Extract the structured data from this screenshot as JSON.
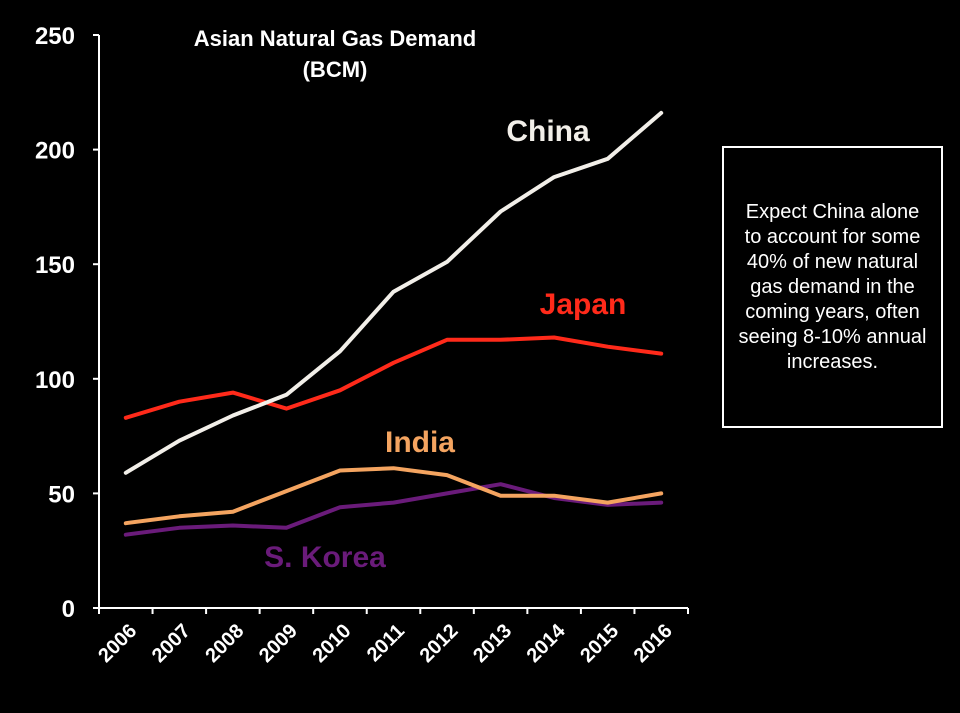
{
  "chart_data": {
    "type": "line",
    "title": "Asian Natural Gas Demand",
    "subtitle": "(BCM)",
    "xlabel": "",
    "ylabel": "",
    "x": [
      "2006",
      "2007",
      "2008",
      "2009",
      "2010",
      "2011",
      "2012",
      "2013",
      "2014",
      "2015",
      "2016"
    ],
    "ylim": [
      0,
      250
    ],
    "yticks": [
      "0",
      "50",
      "100",
      "150",
      "200",
      "250"
    ],
    "grid": false,
    "legend": "series labels placed inline near lines",
    "series": [
      {
        "name": "China",
        "color": "#f2efe9",
        "values": [
          59,
          73,
          84,
          93,
          112,
          138,
          151,
          173,
          188,
          196,
          216
        ]
      },
      {
        "name": "Japan",
        "color": "#ff2a1a",
        "values": [
          83,
          90,
          94,
          87,
          95,
          107,
          117,
          117,
          118,
          114,
          111
        ]
      },
      {
        "name": "India",
        "color": "#f4a460",
        "values": [
          37,
          40,
          42,
          51,
          60,
          61,
          58,
          49,
          49,
          46,
          50
        ]
      },
      {
        "name": "S. Korea",
        "color": "#6a1b7a",
        "values": [
          32,
          35,
          36,
          35,
          44,
          46,
          50,
          54,
          48,
          45,
          46
        ]
      }
    ]
  },
  "annotation": {
    "text": "Expect China alone to account for some 40% of new natural gas demand in the coming years, often seeing 8-10% annual increases."
  },
  "colors": {
    "background": "#000000",
    "axis": "#ffffff",
    "text": "#ffffff"
  }
}
